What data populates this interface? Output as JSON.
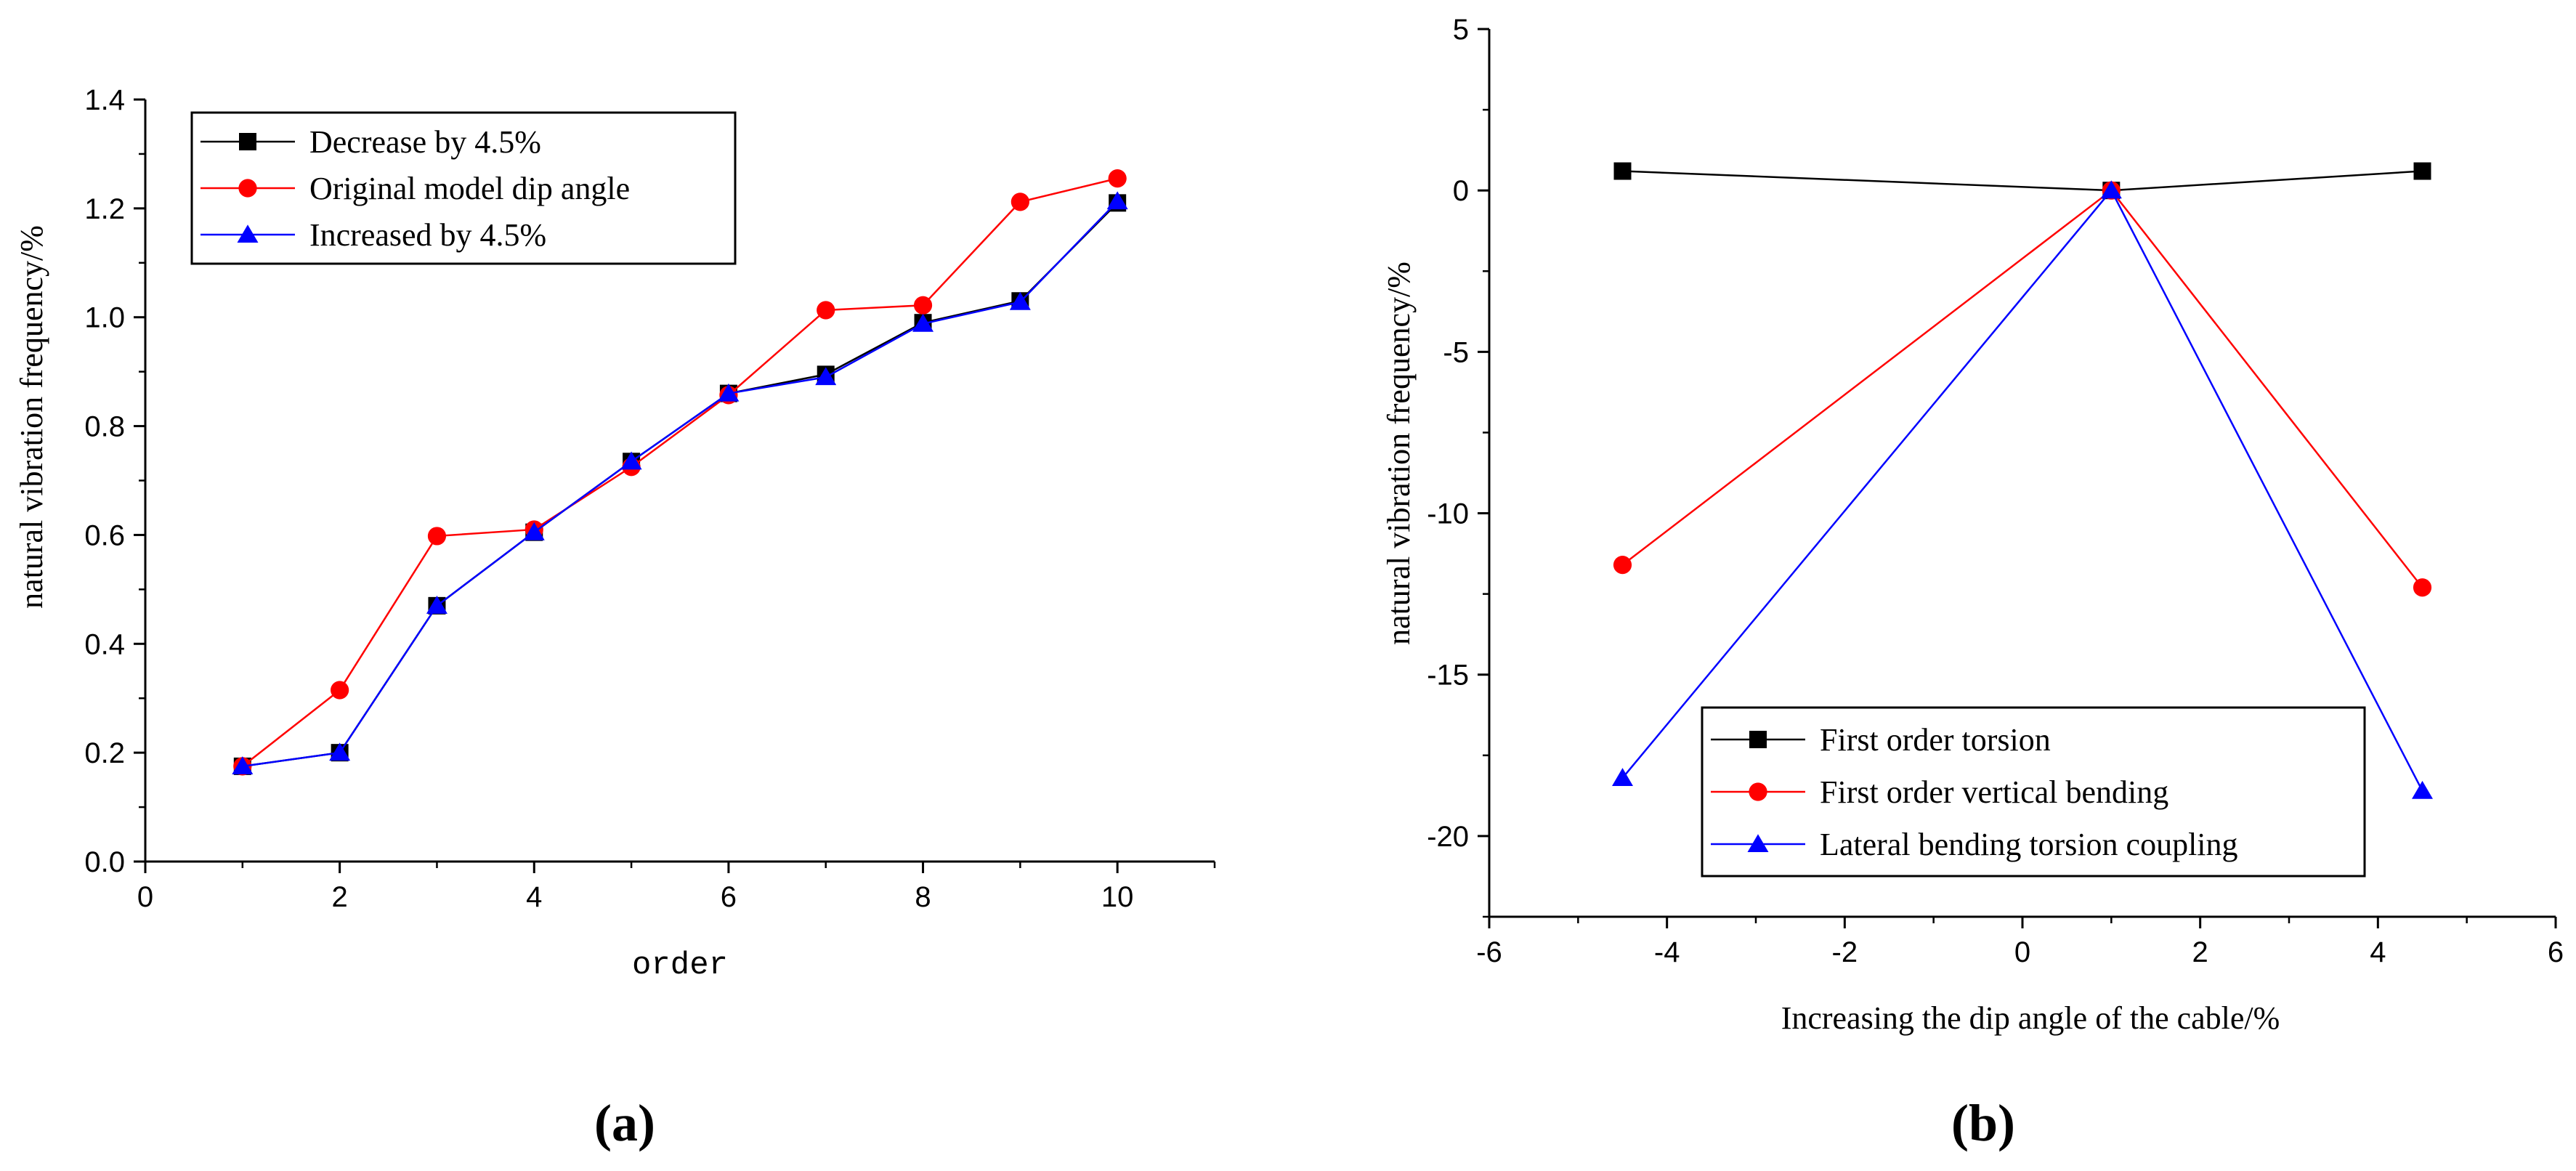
{
  "chart_data": [
    {
      "type": "line",
      "panel_label": "(a)",
      "title": "",
      "xlabel": "order",
      "ylabel": "natural vibration frequency/%",
      "xlim": [
        0,
        11
      ],
      "ylim": [
        0,
        1.4
      ],
      "xticks": [
        "0",
        "2",
        "4",
        "6",
        "8",
        "10"
      ],
      "yticks": [
        "0.0",
        "0.2",
        "0.4",
        "0.6",
        "0.8",
        "1.0",
        "1.2",
        "1.4"
      ],
      "x": [
        1,
        2,
        3,
        4,
        5,
        6,
        7,
        8,
        9,
        10
      ],
      "legend_position": "top-left",
      "series": [
        {
          "name": "Decrease by 4.5%",
          "color": "#000000",
          "marker": "square",
          "values": [
            0.175,
            0.2,
            0.47,
            0.605,
            0.735,
            0.86,
            0.895,
            0.99,
            1.03,
            1.21
          ]
        },
        {
          "name": "Original model dip angle",
          "color": "#ff0000",
          "marker": "circle",
          "values": [
            0.175,
            0.315,
            0.598,
            0.61,
            0.725,
            0.857,
            1.013,
            1.022,
            1.212,
            1.255
          ]
        },
        {
          "name": "Increased by 4.5%",
          "color": "#0000ff",
          "marker": "triangle",
          "values": [
            0.175,
            0.2,
            0.47,
            0.605,
            0.735,
            0.86,
            0.89,
            0.988,
            1.028,
            1.213
          ]
        }
      ]
    },
    {
      "type": "line",
      "panel_label": "(b)",
      "title": "",
      "xlabel": "Increasing the dip angle of the cable/%",
      "ylabel": "natural vibration frequency/%",
      "xlim": [
        -6,
        6
      ],
      "ylim": [
        -22.5,
        5
      ],
      "xticks": [
        "-6",
        "-4",
        "-2",
        "0",
        "2",
        "4",
        "6"
      ],
      "yticks": [
        "5",
        "0",
        "-5",
        "-10",
        "-15",
        "-20"
      ],
      "x": [
        -4.5,
        1,
        4.5
      ],
      "legend_position": "bottom-left",
      "series": [
        {
          "name": "First order torsion",
          "color": "#000000",
          "marker": "square",
          "values": [
            0.6,
            0,
            0.6
          ]
        },
        {
          "name": "First order vertical bending",
          "color": "#ff0000",
          "marker": "circle",
          "values": [
            -11.6,
            0,
            -12.3
          ]
        },
        {
          "name": "Lateral bending torsion coupling",
          "color": "#0000ff",
          "marker": "triangle",
          "values": [
            -18.2,
            0,
            -18.6
          ]
        }
      ]
    }
  ]
}
